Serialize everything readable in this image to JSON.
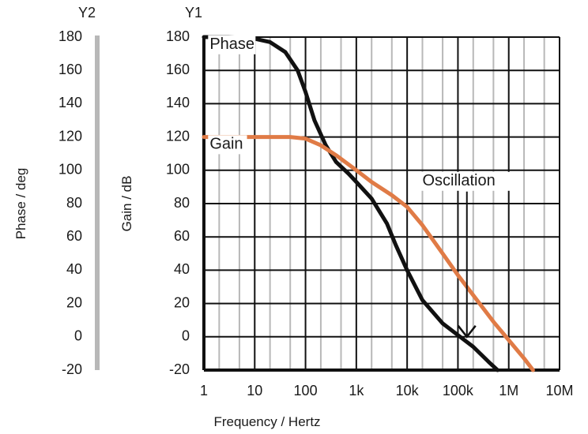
{
  "chart_data": {
    "type": "line",
    "xlabel": "Frequency / Hertz",
    "y1_header": "Y1",
    "y2_header": "Y2",
    "y1_label": "Gain / dB",
    "y2_label": "Phase / deg",
    "x_scale": "log",
    "xlim": [
      1,
      10000000
    ],
    "ylim": [
      -20,
      180
    ],
    "y1_ticks": [
      180,
      160,
      140,
      120,
      100,
      80,
      60,
      40,
      20,
      0,
      -20
    ],
    "y2_ticks": [
      180,
      160,
      140,
      120,
      100,
      80,
      60,
      40,
      20,
      0,
      -20
    ],
    "x_ticks": [
      {
        "value": 1,
        "label": "1"
      },
      {
        "value": 10,
        "label": "10"
      },
      {
        "value": 100,
        "label": "100"
      },
      {
        "value": 1000,
        "label": "1k"
      },
      {
        "value": 10000,
        "label": "10k"
      },
      {
        "value": 100000,
        "label": "100k"
      },
      {
        "value": 1000000,
        "label": "1M"
      },
      {
        "value": 10000000,
        "label": "10M"
      }
    ],
    "grid": true,
    "series": [
      {
        "name": "Phase",
        "axis": "Y2",
        "color": "#111111",
        "x": [
          1,
          3,
          10,
          20,
          40,
          70,
          100,
          150,
          250,
          400,
          700,
          1000,
          2000,
          4000,
          6000,
          10000,
          20000,
          50000,
          100000,
          200000,
          400000,
          600000
        ],
        "y": [
          180,
          180,
          179,
          177,
          171,
          160,
          147,
          130,
          115,
          105,
          98,
          93,
          83,
          68,
          55,
          40,
          22,
          8,
          1,
          -6,
          -15,
          -20
        ]
      },
      {
        "name": "Gain",
        "axis": "Y1",
        "color": "#e07b46",
        "x": [
          1,
          10,
          50,
          100,
          200,
          400,
          1000,
          2000,
          5000,
          10000,
          20000,
          50000,
          100000,
          200000,
          500000,
          1000000,
          2000000,
          3000000
        ],
        "y": [
          120,
          120,
          120,
          119,
          115,
          109,
          100,
          93,
          85,
          78,
          67,
          50,
          37,
          25,
          9,
          -2,
          -13,
          -20
        ]
      }
    ],
    "annotations": [
      {
        "text": "Phase",
        "x": 1.3,
        "y": 173
      },
      {
        "text": "Gain",
        "x": 1.3,
        "y": 113
      },
      {
        "text": "Oscillation",
        "x": 20000,
        "y": 91,
        "arrow_to_x": 150000,
        "arrow_to_y": 0
      }
    ],
    "colors": {
      "grid_major": "#111111",
      "grid_minor": "#b8b8b8",
      "y2_axis_bar": "#b8b8b8",
      "phase": "#111111",
      "gain": "#e07b46"
    }
  }
}
